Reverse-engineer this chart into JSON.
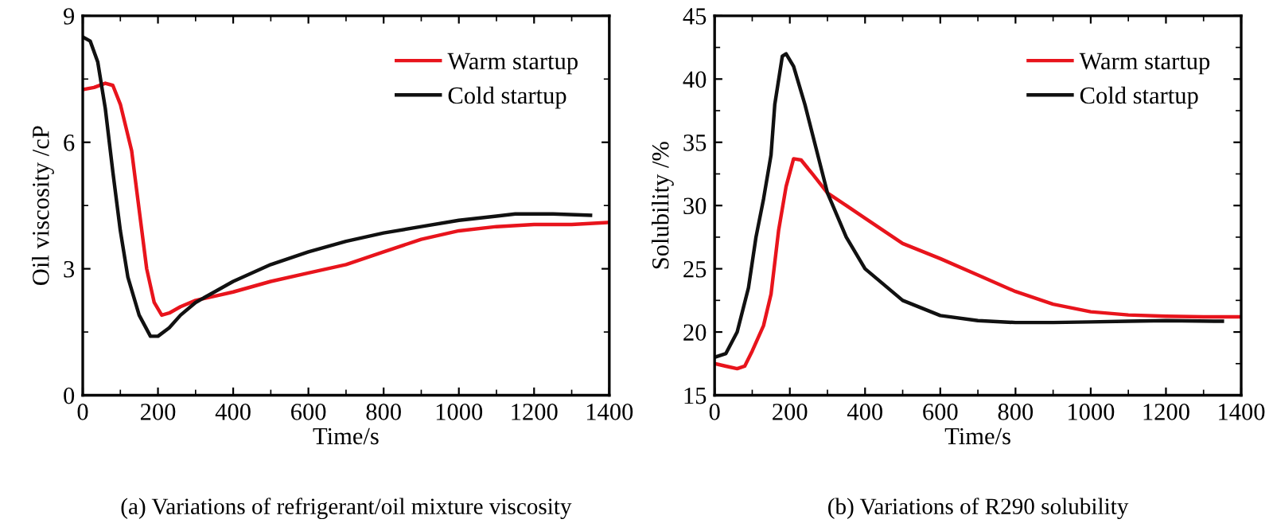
{
  "chart_data": [
    {
      "type": "line",
      "xlabel": "Time/s",
      "ylabel": "Oil viscosity /cP",
      "annotations": [
        "(a) Variations of refrigerant/oil mixture viscosity"
      ],
      "xlim": [
        0,
        1400
      ],
      "xticks": [
        0,
        200,
        400,
        600,
        800,
        1000,
        1200,
        1400
      ],
      "ylim": [
        0,
        9
      ],
      "yticks": [
        0,
        3,
        6,
        9
      ],
      "legend": "top right",
      "line_style": "solid",
      "marker": "none",
      "grid": false,
      "series": [
        {
          "name": "Warm startup",
          "color": "#e8141c",
          "x": [
            0,
            30,
            60,
            80,
            100,
            130,
            150,
            170,
            190,
            210,
            230,
            260,
            300,
            350,
            400,
            500,
            600,
            700,
            800,
            900,
            1000,
            1100,
            1200,
            1300,
            1400
          ],
          "values": [
            7.25,
            7.3,
            7.4,
            7.35,
            6.9,
            5.8,
            4.4,
            3.0,
            2.2,
            1.9,
            1.95,
            2.1,
            2.25,
            2.35,
            2.45,
            2.7,
            2.9,
            3.1,
            3.4,
            3.7,
            3.9,
            4.0,
            4.05,
            4.05,
            4.1
          ]
        },
        {
          "name": "Cold startup",
          "color": "#111111",
          "x": [
            0,
            20,
            40,
            60,
            80,
            100,
            120,
            150,
            180,
            200,
            230,
            260,
            300,
            350,
            400,
            500,
            600,
            700,
            800,
            900,
            1000,
            1100,
            1150,
            1250,
            1350
          ],
          "values": [
            8.5,
            8.4,
            7.9,
            6.8,
            5.3,
            3.9,
            2.8,
            1.9,
            1.4,
            1.4,
            1.6,
            1.9,
            2.2,
            2.45,
            2.7,
            3.1,
            3.4,
            3.65,
            3.85,
            4.0,
            4.15,
            4.25,
            4.3,
            4.3,
            4.27
          ]
        }
      ]
    },
    {
      "type": "line",
      "xlabel": "Time/s",
      "ylabel": "Solubility /%",
      "annotations": [
        "(b) Variations of R290 solubility"
      ],
      "xlim": [
        0,
        1400
      ],
      "xticks": [
        0,
        200,
        400,
        600,
        800,
        1000,
        1200,
        1400
      ],
      "ylim": [
        15,
        45
      ],
      "yticks": [
        15,
        20,
        25,
        30,
        35,
        40,
        45
      ],
      "legend": "top right",
      "line_style": "solid",
      "marker": "none",
      "grid": false,
      "series": [
        {
          "name": "Warm startup",
          "color": "#e8141c",
          "x": [
            0,
            30,
            60,
            80,
            100,
            130,
            150,
            170,
            190,
            210,
            230,
            260,
            300,
            350,
            400,
            500,
            600,
            700,
            800,
            900,
            1000,
            1100,
            1200,
            1300,
            1400
          ],
          "values": [
            17.5,
            17.3,
            17.1,
            17.3,
            18.5,
            20.5,
            23,
            28,
            31.5,
            33.7,
            33.6,
            32.5,
            31,
            30,
            29,
            27,
            25.8,
            24.5,
            23.2,
            22.2,
            21.6,
            21.35,
            21.25,
            21.2,
            21.2
          ]
        },
        {
          "name": "Cold startup",
          "color": "#111111",
          "x": [
            0,
            30,
            60,
            90,
            110,
            130,
            150,
            160,
            180,
            190,
            210,
            240,
            270,
            300,
            350,
            400,
            500,
            600,
            700,
            800,
            900,
            1000,
            1100,
            1200,
            1350
          ],
          "values": [
            18,
            18.3,
            20,
            23.5,
            27.5,
            30.5,
            34,
            38,
            41.8,
            42,
            41,
            38,
            34.5,
            31,
            27.5,
            25,
            22.5,
            21.3,
            20.9,
            20.75,
            20.75,
            20.8,
            20.85,
            20.9,
            20.85
          ]
        }
      ]
    }
  ]
}
